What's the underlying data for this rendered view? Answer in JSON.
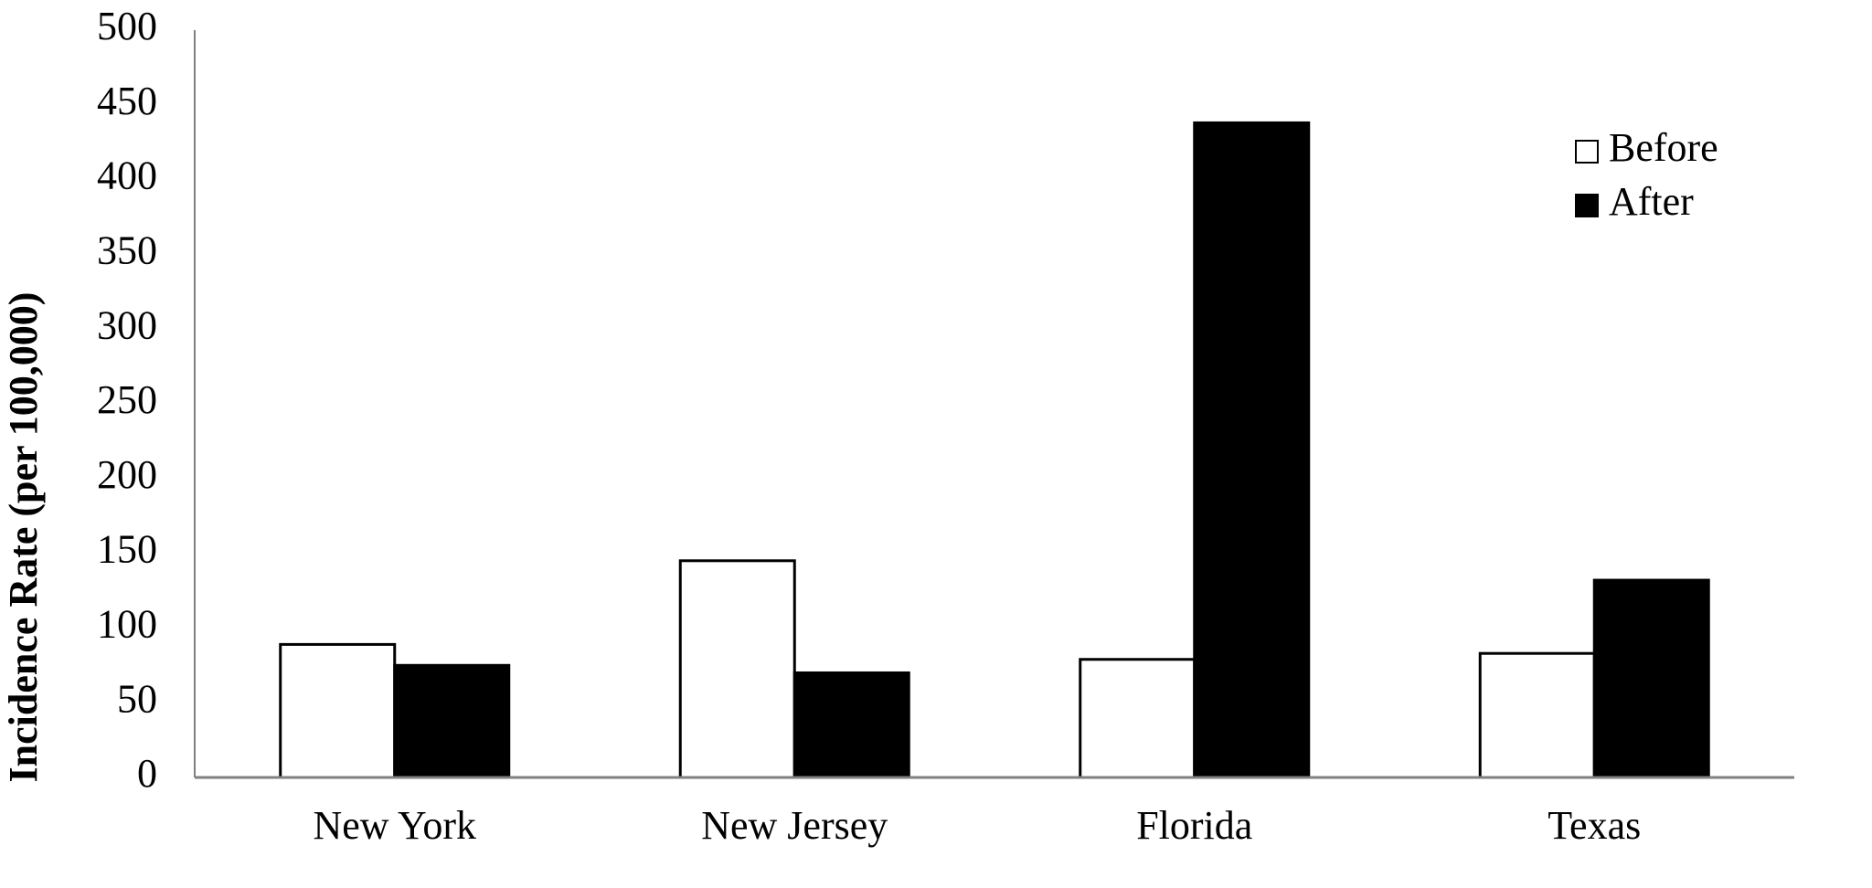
{
  "chart_data": {
    "type": "bar",
    "y_label": "Incidence Rate (per 100,000)",
    "categories": [
      "New York",
      "New Jersey",
      "Florida",
      "Texas"
    ],
    "series": [
      {
        "name": "Before",
        "color": "#ffffff",
        "values": [
          89,
          145,
          79,
          83
        ]
      },
      {
        "name": "After",
        "color": "#000000",
        "values": [
          75,
          70,
          438,
          132
        ]
      }
    ],
    "ylim": [
      0,
      500
    ],
    "yticks": [
      0,
      50,
      100,
      150,
      200,
      250,
      300,
      350,
      400,
      450,
      500
    ],
    "grid": false,
    "legend": "top-right"
  }
}
